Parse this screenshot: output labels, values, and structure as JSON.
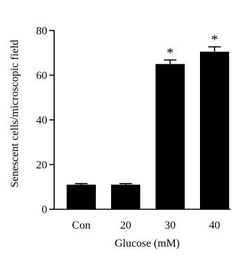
{
  "chart_data": {
    "type": "bar",
    "categories": [
      "Con",
      "20",
      "30",
      "40"
    ],
    "values": [
      11,
      11,
      65,
      70.5
    ],
    "errors": [
      0.5,
      0.5,
      1.8,
      2.2
    ],
    "significance": [
      "",
      "",
      "*",
      "*"
    ],
    "xlabel": "Glucose (mM)",
    "ylabel": "Senescent cells/microscopic field",
    "ylim": [
      0,
      80
    ],
    "yticks": [
      0,
      20,
      40,
      60,
      80
    ],
    "grid": false,
    "colors": {
      "bar": "#000000",
      "axis": "#000000",
      "background": "#ffffff"
    }
  }
}
